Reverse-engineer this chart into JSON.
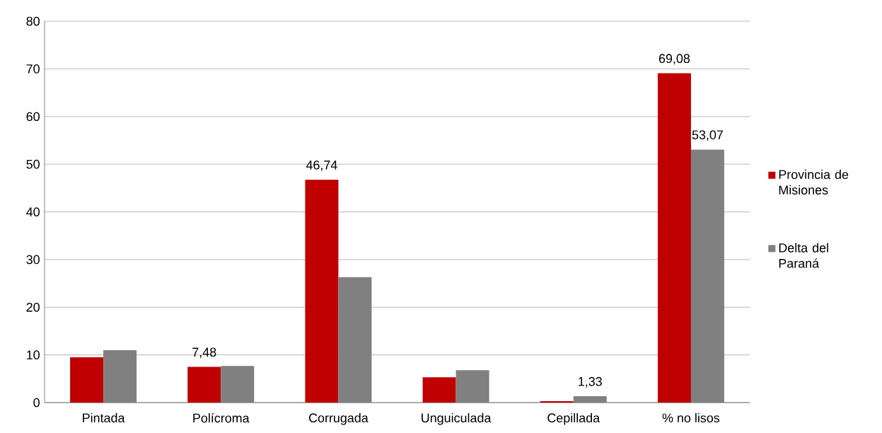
{
  "chart_data": {
    "type": "bar",
    "categories": [
      "Pintada",
      "Polícroma",
      "Corrugada",
      "Unguiculada",
      "Cepillada",
      "% no lisos"
    ],
    "series": [
      {
        "name": "Provincia de Misiones",
        "color": "#c00000",
        "values": [
          9.5,
          7.48,
          46.74,
          5.3,
          0.3,
          69.08
        ],
        "value_labels": [
          null,
          "7,48",
          "46,74",
          null,
          null,
          "69,08"
        ]
      },
      {
        "name": "Delta del Paraná",
        "color": "#808080",
        "values": [
          11.0,
          7.7,
          26.3,
          6.8,
          1.33,
          53.07
        ],
        "value_labels": [
          null,
          null,
          null,
          null,
          "1,33",
          "53,07"
        ]
      }
    ],
    "ylim": [
      0,
      80
    ],
    "yticks": [
      0,
      10,
      20,
      30,
      40,
      50,
      60,
      70,
      80
    ],
    "grid": "y",
    "legend": "right"
  }
}
